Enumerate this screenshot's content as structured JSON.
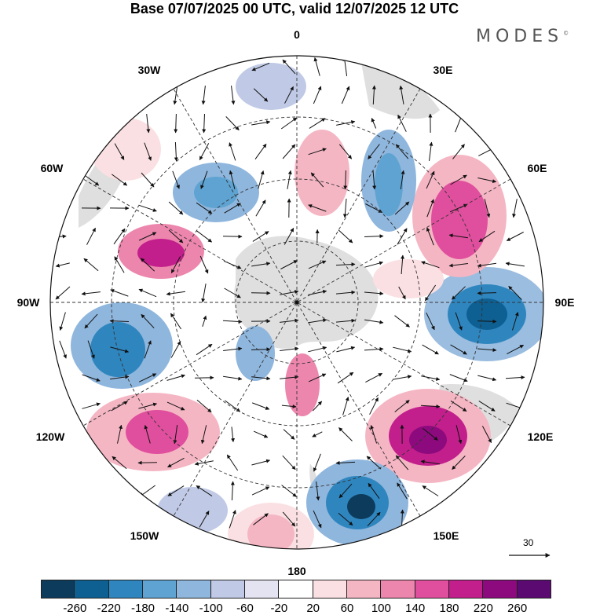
{
  "title": "Base 07/07/2025 00 UTC, valid 12/07/2025 12 UTC",
  "logo": "MODES",
  "logo_mark": "©",
  "longitude_labels": {
    "l0": "0",
    "l30e": "30E",
    "l60e": "60E",
    "l90e": "90E",
    "l120e": "120E",
    "l150e": "150E",
    "l180": "180",
    "l150w": "150W",
    "l120w": "120W",
    "l90w": "90W",
    "l60w": "60W",
    "l30w": "30W"
  },
  "reference_vector": "30",
  "colorbar": {
    "ticks": [
      "-260",
      "-220",
      "-180",
      "-140",
      "-100",
      "-60",
      "-20",
      "20",
      "60",
      "100",
      "140",
      "180",
      "220",
      "260"
    ],
    "colors": [
      "#0d3b5c",
      "#0e5f92",
      "#2f86bf",
      "#5ea3d1",
      "#8fb6dd",
      "#c0cae6",
      "#e4e3f1",
      "#ffffff",
      "#fbe0e3",
      "#f5b6c4",
      "#ed86ad",
      "#e04f9d",
      "#c21f8c",
      "#8c0a7d",
      "#5a0a70"
    ]
  },
  "colors": {
    "land": "#d8d8d8",
    "grid": "#333333"
  }
}
